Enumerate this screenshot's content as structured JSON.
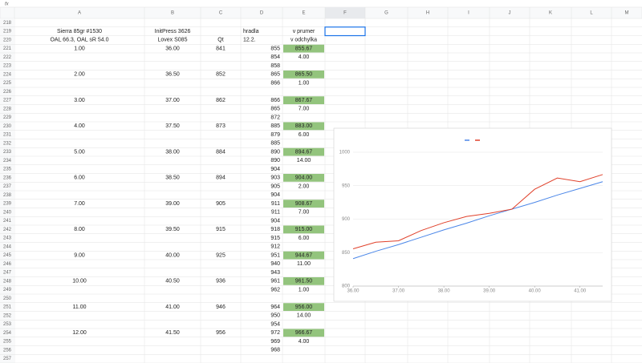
{
  "formula_bar_label": "fx",
  "columns": [
    "A",
    "B",
    "C",
    "D",
    "E",
    "F",
    "G",
    "H",
    "I",
    "J",
    "K",
    "L",
    "M"
  ],
  "highlight_color": "#93c47d",
  "rows": [
    [
      "218",
      null,
      null,
      null,
      null,
      null
    ],
    [
      "219",
      "Sierra 85gr #1530",
      "InitPress 3626",
      null,
      "hradla",
      "v prumer"
    ],
    [
      "220",
      "OAL 66.3, OAL sR 54.0",
      "Lovex S085",
      "Qt",
      "12.2.",
      "v odchylka"
    ],
    [
      "221",
      "1.00",
      "36.00",
      "841",
      "855",
      "855.67"
    ],
    [
      "222",
      null,
      null,
      null,
      "854",
      "4.00"
    ],
    [
      "223",
      null,
      null,
      null,
      "858",
      null
    ],
    [
      "224",
      "2.00",
      "36.50",
      "852",
      "865",
      "865.50"
    ],
    [
      "225",
      null,
      null,
      null,
      "866",
      "1.00"
    ],
    [
      "226",
      null,
      null,
      null,
      null,
      null
    ],
    [
      "227",
      "3.00",
      "37.00",
      "862",
      "866",
      "867.67"
    ],
    [
      "228",
      null,
      null,
      null,
      "865",
      "7.00"
    ],
    [
      "229",
      null,
      null,
      null,
      "872",
      null
    ],
    [
      "230",
      "4.00",
      "37.50",
      "873",
      "885",
      "883.00"
    ],
    [
      "231",
      null,
      null,
      null,
      "879",
      "6.00"
    ],
    [
      "232",
      null,
      null,
      null,
      "885",
      null
    ],
    [
      "233",
      "5.00",
      "38.00",
      "884",
      "890",
      "894.67"
    ],
    [
      "234",
      null,
      null,
      null,
      "890",
      "14.00"
    ],
    [
      "235",
      null,
      null,
      null,
      "904",
      null
    ],
    [
      "236",
      "6.00",
      "38.50",
      "894",
      "903",
      "904.00"
    ],
    [
      "237",
      null,
      null,
      null,
      "905",
      "2.00"
    ],
    [
      "238",
      null,
      null,
      null,
      "904",
      null
    ],
    [
      "239",
      "7.00",
      "39.00",
      "905",
      "911",
      "908.67"
    ],
    [
      "240",
      null,
      null,
      null,
      "911",
      "7.00"
    ],
    [
      "241",
      null,
      null,
      null,
      "904",
      null
    ],
    [
      "242",
      "8.00",
      "39.50",
      "915",
      "918",
      "915.00"
    ],
    [
      "243",
      null,
      null,
      null,
      "915",
      "6.00"
    ],
    [
      "244",
      null,
      null,
      null,
      "912",
      null
    ],
    [
      "245",
      "9.00",
      "40.00",
      "925",
      "951",
      "944.67"
    ],
    [
      "246",
      null,
      null,
      null,
      "940",
      "11.00"
    ],
    [
      "247",
      null,
      null,
      null,
      "943",
      null
    ],
    [
      "248",
      "10.00",
      "40.50",
      "936",
      "961",
      "961.50"
    ],
    [
      "249",
      null,
      null,
      null,
      "962",
      "1.00"
    ],
    [
      "250",
      null,
      null,
      null,
      null,
      null
    ],
    [
      "251",
      "11.00",
      "41.00",
      "946",
      "964",
      "956.00"
    ],
    [
      "252",
      null,
      null,
      null,
      "950",
      "14.00"
    ],
    [
      "253",
      null,
      null,
      null,
      "954",
      null
    ],
    [
      "254",
      "12.00",
      "41.50",
      "956",
      "972",
      "966.67"
    ],
    [
      "255",
      null,
      null,
      null,
      "969",
      "4.00"
    ],
    [
      "256",
      null,
      null,
      null,
      "968",
      null
    ],
    [
      "257",
      null,
      null,
      null,
      null,
      null
    ]
  ],
  "chart_data": {
    "type": "line",
    "x": [
      36,
      36.5,
      37,
      37.5,
      38,
      38.5,
      39,
      39.5,
      40,
      40.5,
      41,
      41.5
    ],
    "series": [
      {
        "color": "#4a86e8",
        "values": [
          841,
          852,
          862,
          873,
          884,
          894,
          905,
          915,
          925,
          936,
          946,
          956
        ]
      },
      {
        "color": "#e0402a",
        "values": [
          855.67,
          865.5,
          867.67,
          883,
          894.67,
          904,
          908.67,
          915,
          944.67,
          961.5,
          956,
          966.67
        ]
      }
    ],
    "xlim": [
      36,
      41.5
    ],
    "ylim": [
      800,
      1000
    ],
    "xticks": [
      {
        "value": 36,
        "label": "36.00"
      },
      {
        "value": 37,
        "label": "37.00"
      },
      {
        "value": 38,
        "label": "38.00"
      },
      {
        "value": 39,
        "label": "39.00"
      },
      {
        "value": 40,
        "label": "40.00"
      },
      {
        "value": 41,
        "label": "41.00"
      }
    ],
    "yticks": [
      800,
      850,
      900,
      950,
      1000
    ],
    "grid": true,
    "legend": "top"
  }
}
